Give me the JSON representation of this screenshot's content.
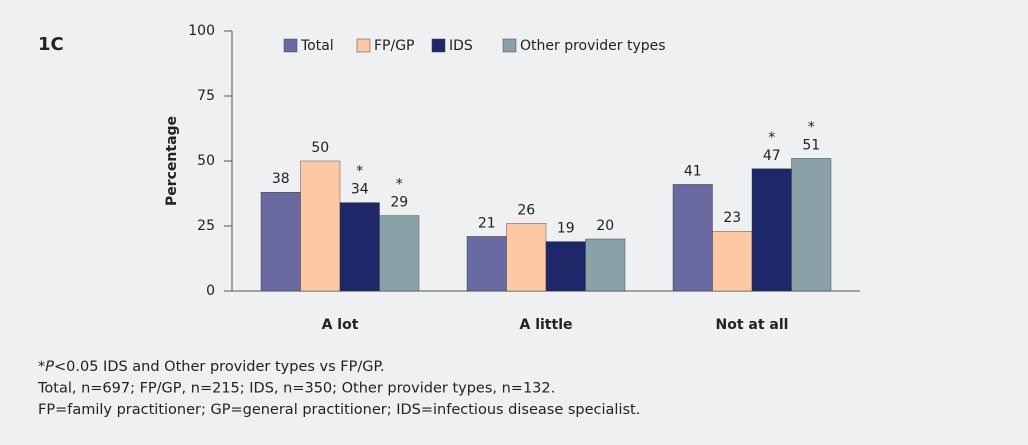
{
  "chart_data": {
    "type": "bar",
    "panel_label": "1C",
    "ylabel": "Percentage",
    "categories": [
      "A lot",
      "A little",
      "Not at all"
    ],
    "series": [
      {
        "name": "Total",
        "color": "#6a6aa2",
        "values": [
          38,
          21,
          41
        ]
      },
      {
        "name": "FP/GP",
        "color": "#fdc8a3",
        "values": [
          50,
          26,
          23
        ]
      },
      {
        "name": "IDS",
        "color": "#1e2767",
        "values": [
          34,
          19,
          47
        ],
        "annotations": [
          "*",
          null,
          "*"
        ]
      },
      {
        "name": "Other provider types",
        "color": "#8aa2a7",
        "values": [
          29,
          20,
          51
        ],
        "annotations": [
          "*",
          null,
          "*"
        ]
      }
    ],
    "ylim": [
      0,
      100
    ],
    "yticks": [
      0,
      25,
      50,
      75,
      100
    ],
    "grid": false,
    "footnotes": [
      [
        "*",
        "P",
        "<0.05 IDS and Other provider types vs FP/GP."
      ],
      [
        "Total, n=697; FP/GP, n=215; IDS, n=350; Other provider types, n=132."
      ],
      [
        "FP=family practitioner; GP=general practitioner; IDS=infectious disease specialist."
      ]
    ]
  }
}
